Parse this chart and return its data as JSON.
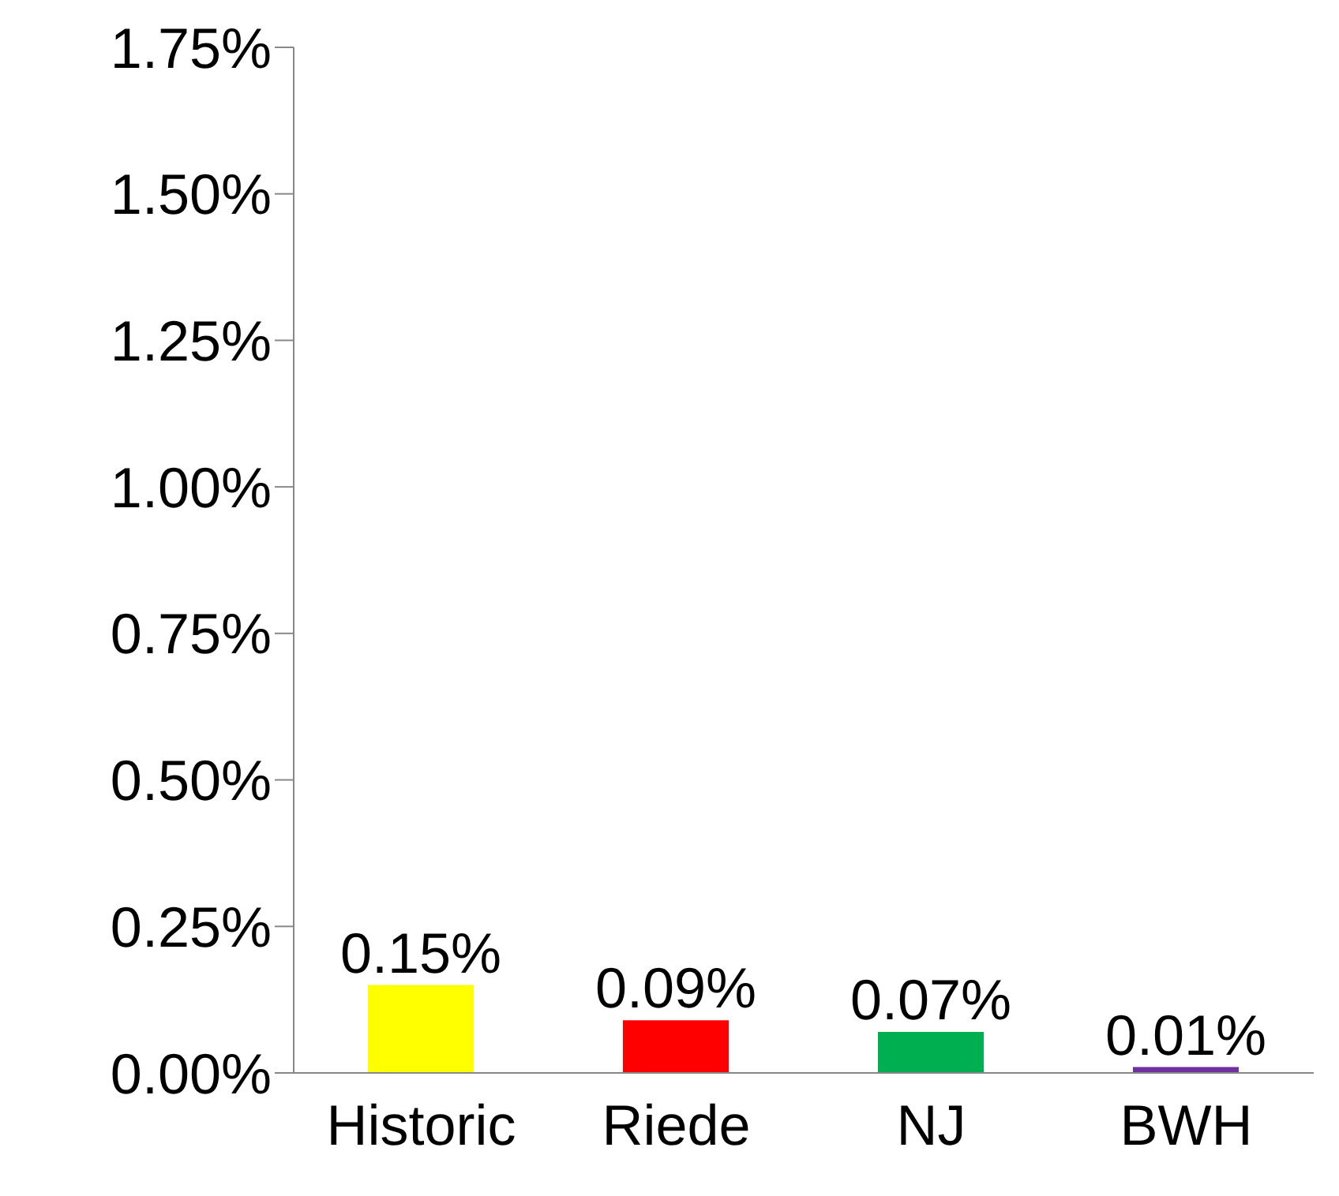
{
  "chart_data": {
    "type": "bar",
    "categories": [
      "Historic",
      "Riede",
      "NJ",
      "BWH"
    ],
    "values": [
      0.15,
      0.09,
      0.07,
      0.01
    ],
    "colors": [
      "#ffff00",
      "#ff0000",
      "#00b050",
      "#7030a0"
    ],
    "value_labels": [
      "0.15%",
      "0.09%",
      "0.07%",
      "0.01%"
    ],
    "ylim": [
      0,
      1.75
    ],
    "yticks": [
      {
        "value": 0,
        "label": "0.00%"
      },
      {
        "value": 0.25,
        "label": "0.25%"
      },
      {
        "value": 0.5,
        "label": "0.50%"
      },
      {
        "value": 0.75,
        "label": "0.75%"
      },
      {
        "value": 1,
        "label": "1.00%"
      },
      {
        "value": 1.25,
        "label": "1.25%"
      },
      {
        "value": 1.5,
        "label": "1.50%"
      },
      {
        "value": 1.75,
        "label": "1.75%"
      }
    ],
    "grid": false,
    "legend": false
  }
}
